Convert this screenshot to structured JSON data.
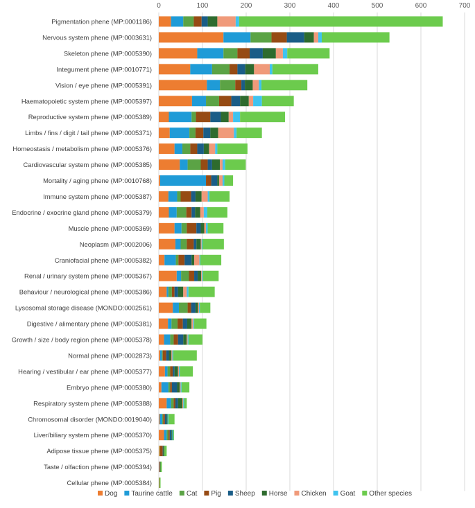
{
  "chart_data": {
    "type": "bar",
    "orientation": "horizontal",
    "stacked": true,
    "title": "",
    "xlabel": "",
    "ylabel": "",
    "xlim": [
      0,
      700
    ],
    "xticks": [
      0,
      100,
      200,
      300,
      400,
      500,
      600,
      700
    ],
    "x_axis_position": "top",
    "grid": true,
    "legend_position": "bottom",
    "categories": [
      "Pigmentation phene (MP:0001186)",
      "Nervous system phene (MP:0003631)",
      "Skeleton phene (MP:0005390)",
      "Integument phene (MP:0010771)",
      "Vision / eye phene (MP:0005391)",
      "Haematopoietic system phene (MP:0005397)",
      "Reproductive system phene (MP:0005389)",
      "Limbs / fins / digit / tail phene (MP:0005371)",
      "Homeostasis / metabolism phene (MP:0005376)",
      "Cardiovascular system phene (MP:0005385)",
      "Mortality / aging phene (MP:0010768)",
      "Immune system phene (MP:0005387)",
      "Endocrine / exocrine gland phene (MP:0005379)",
      "Muscle phene (MP:0005369)",
      "Neoplasm (MP:0002006)",
      "Craniofacial phene (MP:0005382)",
      "Renal / urinary system phene (MP:0005367)",
      "Behaviour / neurological phene (MP:0005386)",
      "Lysosomal storage disease (MONDO:0002561)",
      "Digestive / alimentary phene (MP:0005381)",
      "Growth / size / body region phene (MP:0005378)",
      "Normal phene (MP:0002873)",
      "Hearing / vestibular / ear phene (MP:0005377)",
      "Embryo phene (MP:0005380)",
      "Respiratory system phene (MP:0005388)",
      "Chromosomal disorder (MONDO:0019040)",
      "Liver/biliary system phene (MP:0005370)",
      "Adipose tissue phene (MP:0005375)",
      "Taste / olfaction phene (MP:0005394)",
      "Cellular phene (MP:0005384)"
    ],
    "series": [
      {
        "name": "Dog",
        "color": "#ED7D31",
        "values": [
          28,
          148,
          88,
          72,
          110,
          76,
          23,
          25,
          36,
          48,
          3,
          22,
          23,
          36,
          38,
          13,
          41,
          18,
          32,
          21,
          12,
          3,
          14,
          6,
          18,
          2,
          12,
          2,
          1,
          1
        ]
      },
      {
        "name": "Taurine cattle",
        "color": "#1F9BD7",
        "values": [
          28,
          62,
          60,
          50,
          30,
          32,
          52,
          45,
          18,
          18,
          105,
          20,
          18,
          16,
          12,
          26,
          10,
          4,
          14,
          8,
          14,
          4,
          6,
          16,
          10,
          6,
          6,
          0,
          0,
          0
        ]
      },
      {
        "name": "Cat",
        "color": "#5BA345",
        "values": [
          24,
          48,
          32,
          40,
          35,
          30,
          10,
          14,
          18,
          30,
          0,
          8,
          22,
          12,
          14,
          6,
          18,
          8,
          20,
          14,
          8,
          2,
          6,
          4,
          6,
          2,
          4,
          1,
          0,
          0
        ]
      },
      {
        "name": "Pig",
        "color": "#964B14",
        "values": [
          18,
          35,
          28,
          18,
          14,
          28,
          33,
          18,
          16,
          16,
          12,
          24,
          12,
          22,
          16,
          14,
          12,
          6,
          8,
          12,
          10,
          8,
          6,
          4,
          4,
          4,
          3,
          6,
          1,
          0
        ]
      },
      {
        "name": "Sheep",
        "color": "#1A5D87",
        "values": [
          14,
          40,
          30,
          18,
          8,
          20,
          24,
          16,
          15,
          10,
          14,
          10,
          8,
          10,
          6,
          16,
          8,
          8,
          10,
          10,
          12,
          6,
          4,
          12,
          6,
          4,
          4,
          1,
          1,
          0
        ]
      },
      {
        "name": "Horse",
        "color": "#2E6B2E",
        "values": [
          22,
          22,
          30,
          20,
          18,
          20,
          18,
          18,
          12,
          18,
          4,
          14,
          12,
          8,
          10,
          6,
          8,
          12,
          6,
          10,
          8,
          6,
          8,
          6,
          10,
          2,
          2,
          3,
          1,
          1
        ]
      },
      {
        "name": "Chicken",
        "color": "#F09A7A",
        "values": [
          42,
          10,
          16,
          36,
          14,
          10,
          10,
          36,
          14,
          6,
          8,
          14,
          8,
          4,
          2,
          12,
          2,
          8,
          2,
          4,
          2,
          2,
          2,
          2,
          2,
          0,
          0,
          0,
          0,
          0
        ]
      },
      {
        "name": "Goat",
        "color": "#3FC3EF",
        "values": [
          8,
          8,
          10,
          6,
          6,
          20,
          16,
          6,
          5,
          6,
          4,
          4,
          8,
          4,
          2,
          2,
          2,
          4,
          2,
          2,
          2,
          2,
          2,
          2,
          2,
          2,
          2,
          0,
          0,
          0
        ]
      },
      {
        "name": "Other species",
        "color": "#6CCB4D",
        "values": [
          466,
          155,
          97,
          105,
          105,
          73,
          103,
          58,
          69,
          47,
          20,
          46,
          46,
          36,
          49,
          48,
          36,
          60,
          24,
          28,
          32,
          54,
          30,
          18,
          6,
          14,
          2,
          5,
          3,
          2
        ]
      }
    ]
  }
}
